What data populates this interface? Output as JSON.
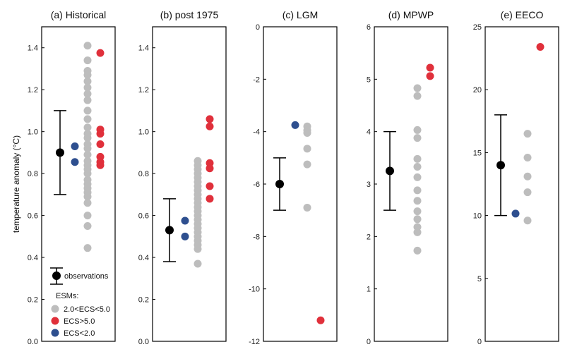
{
  "figure": {
    "y_axis_label": "temperature anomaly (°C)",
    "colors": {
      "observation": "#000000",
      "ecs_mid": "#bdbdbd",
      "ecs_high": "#e0303b",
      "ecs_low": "#2e4f8f"
    },
    "legend": {
      "observations_label": "observations",
      "esms_heading": "ESMs:",
      "items": [
        {
          "label": "2.0<ECS<5.0",
          "color": "#bdbdbd"
        },
        {
          "label": "ECS>5.0",
          "color": "#e0303b"
        },
        {
          "label": "ECS<2.0",
          "color": "#2e4f8f"
        }
      ]
    }
  },
  "chart_data": [
    {
      "type": "scatter",
      "title": "(a) Historical",
      "ylim": [
        0.0,
        1.5
      ],
      "yticks": [
        "0.0",
        "0.2",
        "0.4",
        "0.6",
        "0.8",
        "1.0",
        "1.2",
        "1.4"
      ],
      "observation": {
        "value": 0.9,
        "low": 0.7,
        "high": 1.1
      },
      "series": [
        {
          "name": "ECS<2.0",
          "values": [
            0.93,
            0.855
          ]
        },
        {
          "name": "2.0<ECS<5.0",
          "values": [
            1.41,
            1.34,
            1.29,
            1.27,
            1.24,
            1.21,
            1.18,
            1.15,
            1.1,
            1.06,
            1.02,
            0.99,
            0.97,
            0.94,
            0.92,
            0.89,
            0.86,
            0.84,
            0.82,
            0.8,
            0.77,
            0.75,
            0.73,
            0.71,
            0.69,
            0.66,
            0.6,
            0.55,
            0.445
          ]
        },
        {
          "name": "ECS>5.0",
          "values": [
            1.375,
            1.01,
            0.99,
            0.94,
            0.88,
            0.855,
            0.84
          ]
        }
      ]
    },
    {
      "type": "scatter",
      "title": "(b) post 1975",
      "ylim": [
        0.0,
        1.5
      ],
      "yticks": [
        "0.0",
        "0.2",
        "0.4",
        "0.6",
        "0.8",
        "1.0",
        "1.2",
        "1.4"
      ],
      "observation": {
        "value": 0.53,
        "low": 0.38,
        "high": 0.68
      },
      "series": [
        {
          "name": "ECS<2.0",
          "values": [
            0.575,
            0.5
          ]
        },
        {
          "name": "2.0<ECS<5.0",
          "values": [
            0.86,
            0.84,
            0.82,
            0.8,
            0.78,
            0.76,
            0.74,
            0.72,
            0.7,
            0.68,
            0.66,
            0.64,
            0.62,
            0.6,
            0.58,
            0.56,
            0.54,
            0.52,
            0.5,
            0.48,
            0.46,
            0.44,
            0.37
          ]
        },
        {
          "name": "ECS>5.0",
          "values": [
            1.06,
            1.025,
            0.85,
            0.825,
            0.74,
            0.68
          ]
        }
      ]
    },
    {
      "type": "scatter",
      "title": "(c) LGM",
      "ylim": [
        -12,
        0
      ],
      "yticks": [
        "-12",
        "-10",
        "-8",
        "-6",
        "-4",
        "-2",
        "0"
      ],
      "observation": {
        "value": -6.0,
        "low": -7.0,
        "high": -5.0
      },
      "series": [
        {
          "name": "ECS<2.0",
          "values": [
            -3.75
          ]
        },
        {
          "name": "2.0<ECS<5.0",
          "values": [
            -3.8,
            -3.95,
            -4.05,
            -4.65,
            -5.25,
            -6.9
          ]
        },
        {
          "name": "ECS>5.0",
          "values": [
            -11.2
          ]
        }
      ]
    },
    {
      "type": "scatter",
      "title": "(d) MPWP",
      "ylim": [
        0,
        6
      ],
      "yticks": [
        "0",
        "1",
        "2",
        "3",
        "4",
        "5",
        "6"
      ],
      "observation": {
        "value": 3.25,
        "low": 2.5,
        "high": 4.0
      },
      "series": [
        {
          "name": "2.0<ECS<5.0",
          "values": [
            4.83,
            4.68,
            4.03,
            3.88,
            3.48,
            3.33,
            3.13,
            2.88,
            2.68,
            2.48,
            2.33,
            2.18,
            2.08,
            1.73
          ]
        },
        {
          "name": "ECS>5.0",
          "values": [
            5.22,
            5.06
          ]
        }
      ]
    },
    {
      "type": "scatter",
      "title": "(e) EECO",
      "ylim": [
        0,
        25
      ],
      "yticks": [
        "0",
        "5",
        "10",
        "15",
        "20",
        "25"
      ],
      "observation": {
        "value": 14.0,
        "low": 10.0,
        "high": 18.0
      },
      "series": [
        {
          "name": "ECS<2.0",
          "values": [
            10.15
          ]
        },
        {
          "name": "2.0<ECS<5.0",
          "values": [
            16.5,
            14.6,
            13.1,
            11.85,
            9.6
          ]
        },
        {
          "name": "ECS>5.0",
          "values": [
            23.4
          ]
        }
      ]
    }
  ]
}
